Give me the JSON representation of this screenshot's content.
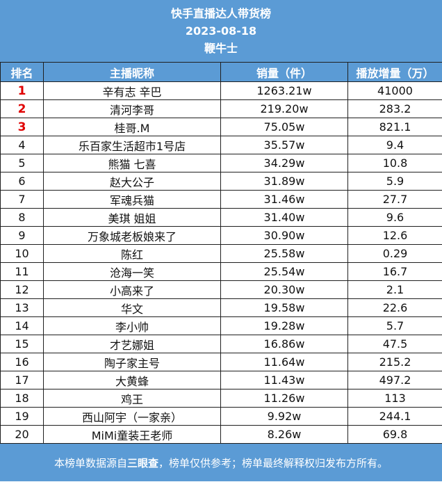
{
  "header": {
    "title": "快手直播达人带货榜",
    "date": "2023-08-18",
    "brand": "鞭牛士"
  },
  "table": {
    "columns": [
      "排名",
      "主播昵称",
      "销量（件）",
      "播放增量（万）"
    ],
    "rows": [
      {
        "rank": "1",
        "name": "辛有志 辛巴",
        "sales": "1263.21w",
        "views": "41000"
      },
      {
        "rank": "2",
        "name": "清河李哥",
        "sales": "219.20w",
        "views": "283.2"
      },
      {
        "rank": "3",
        "name": "桂哥.M",
        "sales": "75.05w",
        "views": "821.1"
      },
      {
        "rank": "4",
        "name": "乐百家生活超市1号店",
        "sales": "35.57w",
        "views": "9.4"
      },
      {
        "rank": "5",
        "name": "熊猫 七喜",
        "sales": "34.29w",
        "views": "10.8"
      },
      {
        "rank": "6",
        "name": "赵大公子",
        "sales": "31.89w",
        "views": "5.9"
      },
      {
        "rank": "7",
        "name": "军魂兵猫",
        "sales": "31.46w",
        "views": "27.7"
      },
      {
        "rank": "8",
        "name": "美琪 姐姐",
        "sales": "31.40w",
        "views": "9.6"
      },
      {
        "rank": "9",
        "name": "万象城老板娘来了",
        "sales": "30.90w",
        "views": "12.6"
      },
      {
        "rank": "10",
        "name": "陈红",
        "sales": "25.58w",
        "views": "0.29"
      },
      {
        "rank": "11",
        "name": "沧海一笑",
        "sales": "25.54w",
        "views": "16.7"
      },
      {
        "rank": "12",
        "name": "小高来了",
        "sales": "20.30w",
        "views": "2.1"
      },
      {
        "rank": "13",
        "name": "华文",
        "sales": "19.58w",
        "views": "22.6"
      },
      {
        "rank": "14",
        "name": "李小帅",
        "sales": "19.28w",
        "views": "5.7"
      },
      {
        "rank": "15",
        "name": "才艺娜姐",
        "sales": "16.86w",
        "views": "47.5"
      },
      {
        "rank": "16",
        "name": "陶子家主号",
        "sales": "11.64w",
        "views": "215.2"
      },
      {
        "rank": "17",
        "name": "大黄蜂",
        "sales": "11.43w",
        "views": "497.2"
      },
      {
        "rank": "18",
        "name": "鸡王",
        "sales": "11.26w",
        "views": "113"
      },
      {
        "rank": "19",
        "name": "西山阿宇（一家亲）",
        "sales": "9.92w",
        "views": "244.1"
      },
      {
        "rank": "20",
        "name": "MiMi童装王老师",
        "sales": "8.26w",
        "views": "69.8"
      }
    ]
  },
  "footer": {
    "prefix": "本榜单数据源自",
    "source": "三眼查",
    "suffix": "，榜单仅供参考；榜单最终解释权归发布方所有。"
  },
  "colors": {
    "header_bg": "#5b9bd5",
    "top_rank": "#e00000"
  }
}
